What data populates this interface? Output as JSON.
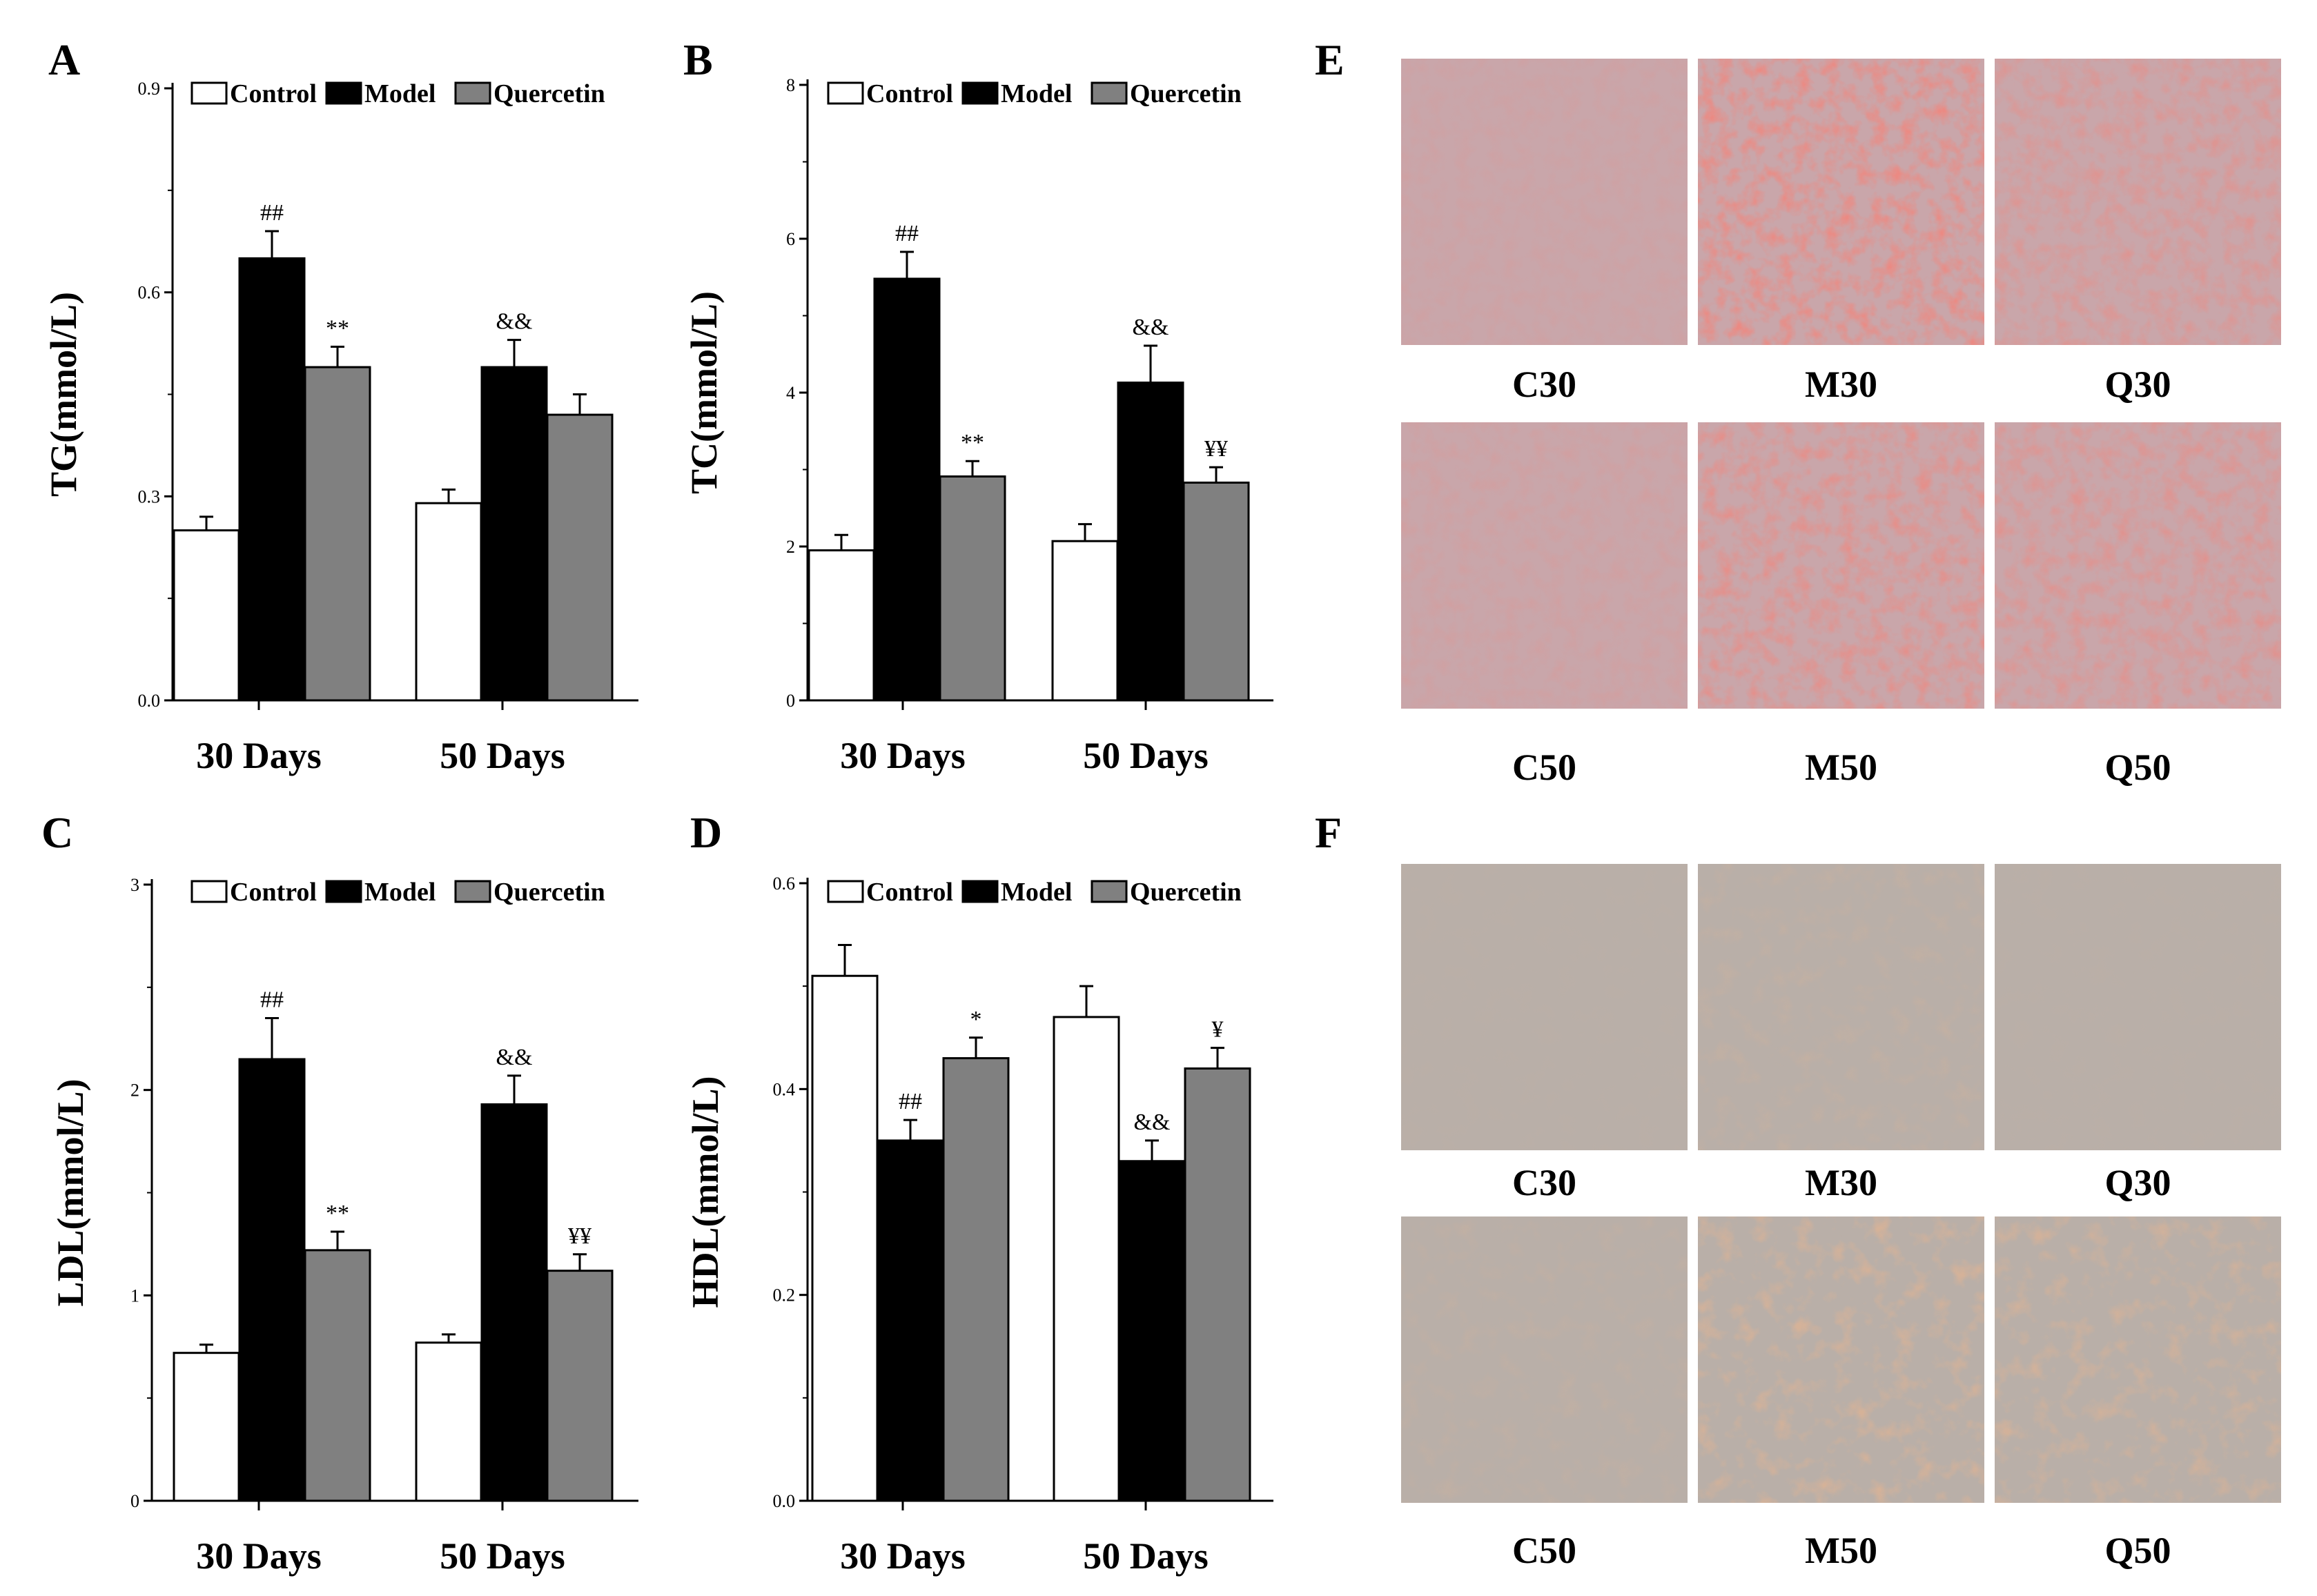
{
  "legend": [
    "Control",
    "Model",
    "Quercetin"
  ],
  "colors": {
    "Control": "#ffffff",
    "Model": "#000000",
    "Quercetin": "#808080",
    "stroke": "#000000"
  },
  "chart_data": [
    {
      "panel": "A",
      "type": "bar",
      "categories": [
        "30 Days",
        "50 Days"
      ],
      "ylabel": "TG(mmol/L)",
      "ylim": [
        0,
        0.9
      ],
      "yticks": [
        "0.0",
        "0.3",
        "0.6",
        "0.9"
      ],
      "ytick_values": [
        0,
        0.3,
        0.6,
        0.9
      ],
      "legend_position": "top",
      "series": [
        {
          "name": "Control",
          "values": [
            0.25,
            0.29
          ],
          "errors": [
            0.02,
            0.02
          ],
          "annotations": [
            "",
            ""
          ]
        },
        {
          "name": "Model",
          "values": [
            0.65,
            0.49
          ],
          "errors": [
            0.04,
            0.04
          ],
          "annotations": [
            "##",
            "&&"
          ]
        },
        {
          "name": "Quercetin",
          "values": [
            0.49,
            0.42
          ],
          "errors": [
            0.03,
            0.03
          ],
          "annotations": [
            "**",
            ""
          ]
        }
      ]
    },
    {
      "panel": "B",
      "type": "bar",
      "categories": [
        "30 Days",
        "50 Days"
      ],
      "ylabel": "TC(mmol/L)",
      "ylim": [
        0,
        8
      ],
      "yticks": [
        "0",
        "2",
        "4",
        "6",
        "8"
      ],
      "ytick_values": [
        0,
        2,
        4,
        6,
        8
      ],
      "legend_position": "top",
      "series": [
        {
          "name": "Control",
          "values": [
            1.95,
            2.07
          ],
          "errors": [
            0.2,
            0.22
          ],
          "annotations": [
            "",
            ""
          ]
        },
        {
          "name": "Model",
          "values": [
            5.48,
            4.13
          ],
          "errors": [
            0.35,
            0.48
          ],
          "annotations": [
            "##",
            "&&"
          ]
        },
        {
          "name": "Quercetin",
          "values": [
            2.91,
            2.83
          ],
          "errors": [
            0.2,
            0.2
          ],
          "annotations": [
            "**",
            "¥¥"
          ]
        }
      ]
    },
    {
      "panel": "C",
      "type": "bar",
      "categories": [
        "30 Days",
        "50 Days"
      ],
      "ylabel": "LDL(mmol/L)",
      "ylim": [
        0,
        3
      ],
      "yticks": [
        "0",
        "1",
        "2",
        "3"
      ],
      "ytick_values": [
        0,
        1,
        2,
        3
      ],
      "legend_position": "top",
      "series": [
        {
          "name": "Control",
          "values": [
            0.72,
            0.77
          ],
          "errors": [
            0.04,
            0.04
          ],
          "annotations": [
            "",
            ""
          ]
        },
        {
          "name": "Model",
          "values": [
            2.15,
            1.93
          ],
          "errors": [
            0.2,
            0.14
          ],
          "annotations": [
            "##",
            "&&"
          ]
        },
        {
          "name": "Quercetin",
          "values": [
            1.22,
            1.12
          ],
          "errors": [
            0.09,
            0.08
          ],
          "annotations": [
            "**",
            "¥¥"
          ]
        }
      ]
    },
    {
      "panel": "D",
      "type": "bar",
      "categories": [
        "30 Days",
        "50 Days"
      ],
      "ylabel": "HDL(mmol/L)",
      "ylim": [
        0,
        0.6
      ],
      "yticks": [
        "0.0",
        "0.2",
        "0.4",
        "0.6"
      ],
      "ytick_values": [
        0,
        0.2,
        0.4,
        0.6
      ],
      "legend_position": "top",
      "series": [
        {
          "name": "Control",
          "values": [
            0.51,
            0.47
          ],
          "errors": [
            0.03,
            0.03
          ],
          "annotations": [
            "",
            ""
          ]
        },
        {
          "name": "Model",
          "values": [
            0.35,
            0.33
          ],
          "errors": [
            0.02,
            0.02
          ],
          "annotations": [
            "##",
            "&&"
          ]
        },
        {
          "name": "Quercetin",
          "values": [
            0.43,
            0.42
          ],
          "errors": [
            0.02,
            0.02
          ],
          "annotations": [
            "*",
            "¥"
          ]
        }
      ]
    }
  ],
  "image_panels": [
    {
      "panel": "E",
      "labels": [
        "C30",
        "M30",
        "Q30",
        "C50",
        "M50",
        "Q50"
      ],
      "stain": "red"
    },
    {
      "panel": "F",
      "labels": [
        "C30",
        "M30",
        "Q30",
        "C50",
        "M50",
        "Q50"
      ],
      "stain": "brown"
    }
  ]
}
